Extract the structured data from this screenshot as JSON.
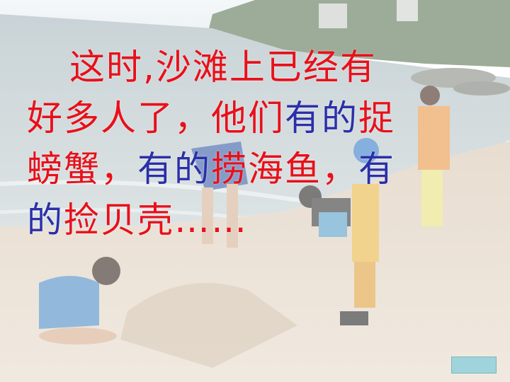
{
  "slide": {
    "lines": [
      [
        {
          "text": "这时,沙滩上已经有",
          "color": "#e8101a"
        }
      ],
      [
        {
          "text": "好多人了，他们",
          "color": "#e8101a"
        },
        {
          "text": "有的",
          "color": "#2b2fa8"
        },
        {
          "text": "捉",
          "color": "#e8101a"
        }
      ],
      [
        {
          "text": "螃蟹，",
          "color": "#e8101a"
        },
        {
          "text": "有的",
          "color": "#2b2fa8"
        },
        {
          "text": "捞海鱼，",
          "color": "#e8101a"
        },
        {
          "text": "有",
          "color": "#2b2fa8"
        }
      ],
      [
        {
          "text": "的",
          "color": "#2b2fa8"
        },
        {
          "text": "捡贝壳……",
          "color": "#e8101a"
        }
      ]
    ]
  },
  "colors": {
    "primary_text": "#e8101a",
    "accent_text": "#2b2fa8",
    "nav_button": "#9fd4dc"
  },
  "background": {
    "description_icon": "beach-photo"
  }
}
